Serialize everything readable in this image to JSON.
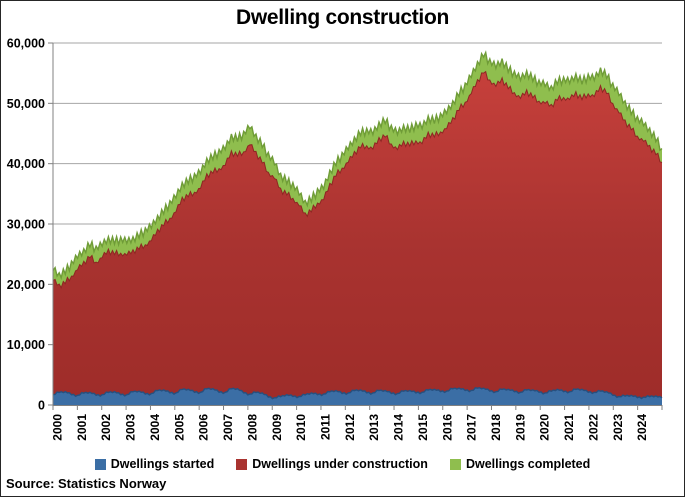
{
  "figure": {
    "title": "Dwelling construction",
    "source": "Source: Statistics Norway"
  },
  "chart_data": {
    "type": "area",
    "stacked": true,
    "title": "Dwelling construction",
    "xlabel": "",
    "ylabel": "",
    "x_start_year": 2000,
    "points_per_year": 4,
    "x_range": [
      2000,
      2025
    ],
    "ylim": [
      0,
      60000
    ],
    "grid": "horizontal",
    "legend_position": "bottom",
    "categories": [
      "2000",
      "2001",
      "2002",
      "2003",
      "2004",
      "2005",
      "2006",
      "2007",
      "2008",
      "2009",
      "2010",
      "2011",
      "2012",
      "2013",
      "2014",
      "2015",
      "2016",
      "2017",
      "2018",
      "2019",
      "2020",
      "2021",
      "2022",
      "2023",
      "2024"
    ],
    "y_ticks": [
      "0",
      "10,000",
      "20,000",
      "30,000",
      "40,000",
      "50,000",
      "60,000"
    ],
    "axis_color": "#808080",
    "gridline_color": "#a6a6a6",
    "series": [
      {
        "name": "Dwellings started",
        "color": "#3b6ea5",
        "edge": "#27507f",
        "values": [
          1600,
          2200,
          2100,
          1800,
          1500,
          2100,
          2000,
          1700,
          1600,
          2200,
          2100,
          1800,
          1600,
          2300,
          2200,
          1900,
          1800,
          2500,
          2400,
          2100,
          1900,
          2700,
          2500,
          2200,
          2000,
          2800,
          2600,
          2200,
          2000,
          2800,
          2600,
          2100,
          1700,
          2200,
          1900,
          1400,
          1100,
          1500,
          1600,
          1500,
          1300,
          1800,
          1900,
          1800,
          1700,
          2300,
          2300,
          2000,
          1900,
          2500,
          2400,
          2100,
          1900,
          2500,
          2300,
          2000,
          1800,
          2400,
          2300,
          2100,
          2000,
          2600,
          2500,
          2300,
          2200,
          2800,
          2700,
          2500,
          2300,
          2900,
          2700,
          2400,
          2100,
          2700,
          2500,
          2300,
          2000,
          2600,
          2400,
          2200,
          1900,
          2400,
          2500,
          2300,
          2100,
          2700,
          2500,
          2200,
          2000,
          2400,
          2100,
          1700,
          1300,
          1600,
          1500,
          1300,
          1200,
          1500,
          1400,
          1200
        ]
      },
      {
        "name": "Dwellings under construction",
        "color": "#a93330",
        "color_top": "#cb423d",
        "color_bottom": "#9e2c29",
        "edge": "#8e2723",
        "values": [
          18900,
          17700,
          18100,
          19500,
          20800,
          21600,
          22500,
          21900,
          22700,
          23500,
          22900,
          23300,
          23100,
          23300,
          23700,
          24600,
          25300,
          26500,
          27400,
          28800,
          30000,
          31600,
          32100,
          33000,
          33800,
          35400,
          35900,
          36900,
          37600,
          39200,
          38700,
          39800,
          41300,
          39700,
          38300,
          37100,
          36300,
          34300,
          33300,
          32700,
          31600,
          29900,
          30200,
          31600,
          32200,
          34300,
          35700,
          37200,
          38200,
          39400,
          40300,
          40800,
          40400,
          41700,
          42200,
          41200,
          40400,
          41200,
          40700,
          41600,
          41200,
          42500,
          42000,
          42900,
          43500,
          44700,
          46200,
          47600,
          49200,
          50900,
          52400,
          51400,
          50600,
          51400,
          50000,
          49400,
          48700,
          49500,
          48600,
          48100,
          48000,
          47300,
          48100,
          48600,
          48400,
          49100,
          48200,
          49300,
          49000,
          50400,
          49600,
          48200,
          47000,
          45500,
          44200,
          43200,
          42400,
          41400,
          40200,
          39000
        ]
      },
      {
        "name": "Dwellings completed",
        "color": "#8fbe4e",
        "edge": "#6f9c37",
        "values": [
          2000,
          1600,
          1800,
          2200,
          2200,
          1800,
          2000,
          2400,
          2200,
          1800,
          2000,
          2400,
          2300,
          1900,
          2100,
          2500,
          2400,
          2000,
          2200,
          2600,
          2600,
          2200,
          2400,
          2800,
          2700,
          2300,
          2500,
          2900,
          2900,
          2500,
          2700,
          3100,
          3000,
          2600,
          2800,
          3000,
          2600,
          2200,
          2100,
          2300,
          2100,
          1800,
          1900,
          2100,
          2100,
          1900,
          2000,
          2300,
          2400,
          2100,
          2300,
          2600,
          2700,
          2300,
          2500,
          2800,
          2800,
          2400,
          2500,
          2800,
          2800,
          2400,
          2500,
          2800,
          2800,
          2500,
          2600,
          2900,
          3000,
          2700,
          2900,
          3200,
          3300,
          2900,
          3000,
          3300,
          3300,
          2900,
          3000,
          3200,
          3100,
          2800,
          2900,
          3100,
          3000,
          2700,
          2800,
          3000,
          3000,
          2700,
          2800,
          3100,
          3200,
          2900,
          2800,
          3000,
          2900,
          2600,
          2400,
          2300
        ]
      }
    ]
  }
}
